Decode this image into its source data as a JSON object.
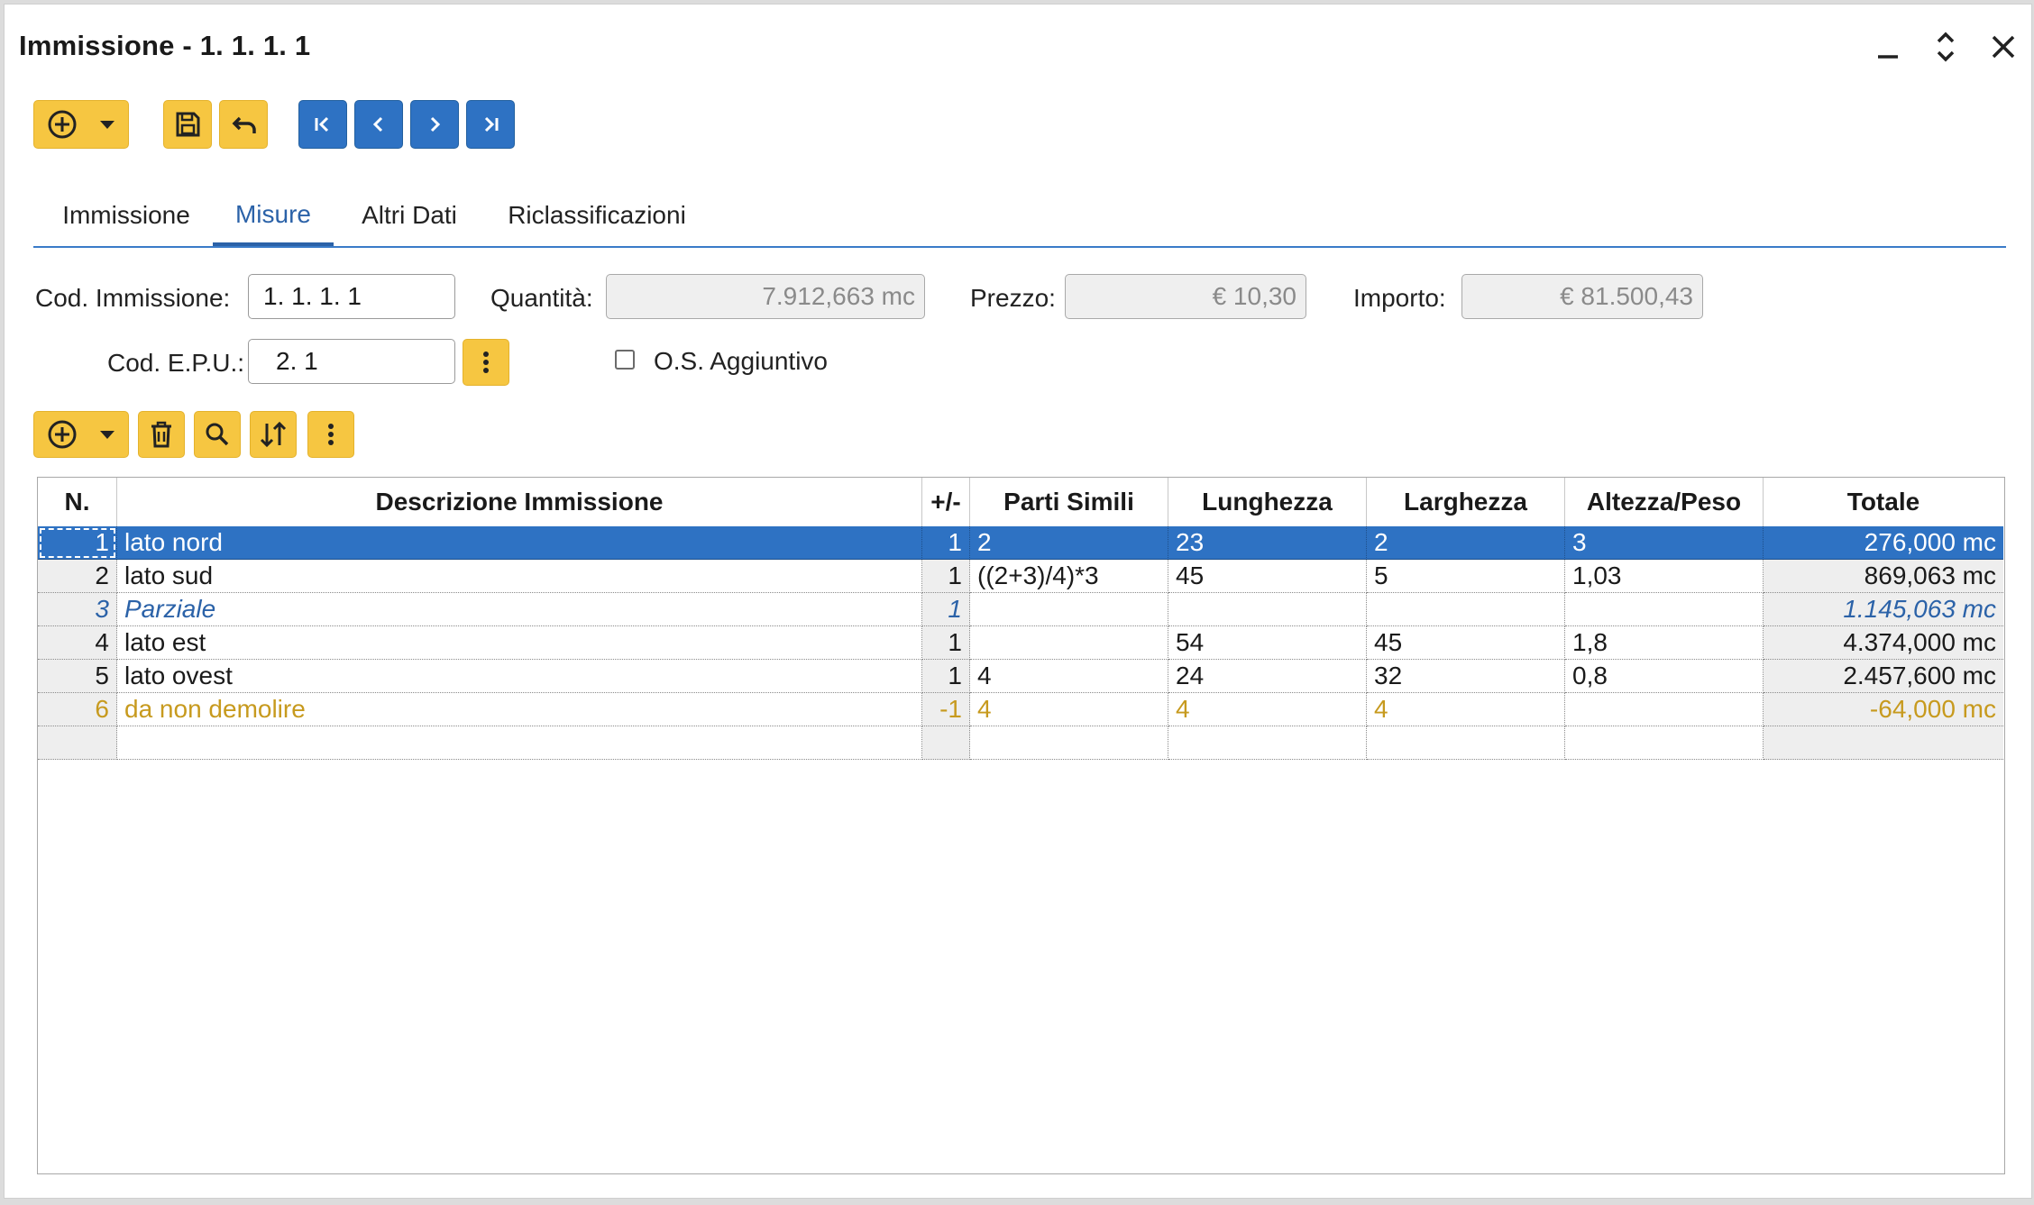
{
  "window": {
    "title": "Immissione - 1. 1. 1. 1",
    "controls": [
      "minimize-icon",
      "maximize-icon",
      "close-icon"
    ]
  },
  "toolbar": {
    "buttons": [
      "add-icon",
      "dropdown-icon",
      "save-icon",
      "undo-icon",
      "first-icon",
      "prev-icon",
      "next-icon",
      "last-icon"
    ]
  },
  "tabs": [
    {
      "label": "Immissione",
      "active": false
    },
    {
      "label": "Misure",
      "active": true
    },
    {
      "label": "Altri Dati",
      "active": false
    },
    {
      "label": "Riclassificazioni",
      "active": false
    }
  ],
  "form": {
    "cod_immissione_label": "Cod. Immissione:",
    "cod_immissione_value": "1. 1. 1. 1",
    "quantita_label": "Quantità:",
    "quantita_value": "7.912,663 mc",
    "prezzo_label": "Prezzo:",
    "prezzo_value": "€ 10,30",
    "importo_label": "Importo:",
    "importo_value": "€ 81.500,43",
    "cod_epu_label": "Cod. E.P.U.:",
    "cod_epu_value": "2. 1",
    "os_aggiuntivo_label": "O.S. Aggiuntivo",
    "os_aggiuntivo_checked": false
  },
  "grid_toolbar": {
    "buttons": [
      "add-icon",
      "dropdown-icon",
      "delete-icon",
      "search-icon",
      "sort-icon",
      "more-icon"
    ]
  },
  "table": {
    "headers": [
      "N.",
      "Descrizione Immissione",
      "+/-",
      "Parti Simili",
      "Lunghezza",
      "Larghezza",
      "Altezza/Peso",
      "Totale"
    ],
    "rows": [
      {
        "n": "1",
        "desc": "lato nord",
        "sign": "1",
        "parti": "2",
        "lung": "23",
        "larg": "2",
        "alt": "3",
        "tot": "276,000 mc",
        "type": "selected"
      },
      {
        "n": "2",
        "desc": "lato sud",
        "sign": "1",
        "parti": "((2+3)/4)*3",
        "lung": "45",
        "larg": "5",
        "alt": "1,03",
        "tot": "869,063 mc",
        "type": "normal"
      },
      {
        "n": "3",
        "desc": "Parziale",
        "sign": "1",
        "parti": "",
        "lung": "",
        "larg": "",
        "alt": "",
        "tot": "1.145,063 mc",
        "type": "partial"
      },
      {
        "n": "4",
        "desc": "lato est",
        "sign": "1",
        "parti": "",
        "lung": "54",
        "larg": "45",
        "alt": "1,8",
        "tot": "4.374,000 mc",
        "type": "normal"
      },
      {
        "n": "5",
        "desc": "lato ovest",
        "sign": "1",
        "parti": "4",
        "lung": "24",
        "larg": "32",
        "alt": "0,8",
        "tot": "2.457,600 mc",
        "type": "normal"
      },
      {
        "n": "6",
        "desc": "da non demolire",
        "sign": "-1",
        "parti": "4",
        "lung": "4",
        "larg": "4",
        "alt": "",
        "tot": "-64,000 mc",
        "type": "negative"
      },
      {
        "n": "",
        "desc": "",
        "sign": "",
        "parti": "",
        "lung": "",
        "larg": "",
        "alt": "",
        "tot": "",
        "type": "empty"
      }
    ]
  },
  "colors": {
    "accent_yellow": "#f6c641",
    "accent_blue": "#2e72c3",
    "tab_active": "#2b62a8",
    "negative_row": "#c79a1e"
  }
}
